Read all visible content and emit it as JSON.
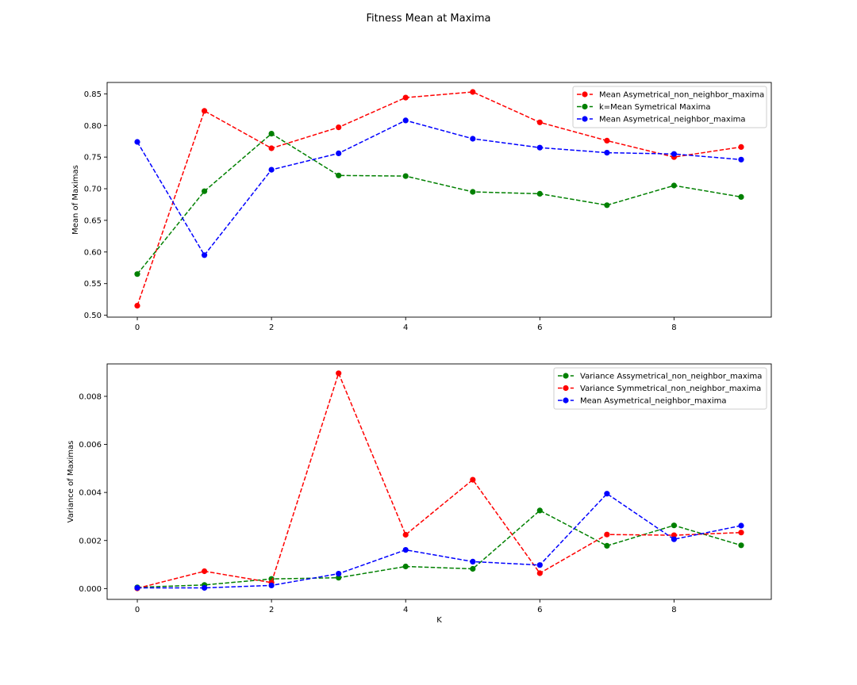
{
  "figure": {
    "title": "Fitness Mean at Maxima"
  },
  "chart_data": [
    {
      "type": "line",
      "title": "",
      "xlabel": "",
      "ylabel": "Mean of Maximas",
      "x": [
        0,
        1,
        2,
        3,
        4,
        5,
        6,
        7,
        8,
        9
      ],
      "xlim": [
        -0.45,
        9.45
      ],
      "ylim": [
        0.497,
        0.868
      ],
      "xticks": [
        0,
        2,
        4,
        6,
        8
      ],
      "xtick_labels": [
        "0",
        "2",
        "4",
        "6",
        "8"
      ],
      "yticks": [
        0.5,
        0.55,
        0.6,
        0.65,
        0.7,
        0.75,
        0.8,
        0.85
      ],
      "ytick_labels": [
        "0.50",
        "0.55",
        "0.60",
        "0.65",
        "0.70",
        "0.75",
        "0.80",
        "0.85"
      ],
      "grid": false,
      "legend_position": "top-right",
      "series": [
        {
          "name": "Mean Asymetrical_non_neighbor_maxima",
          "color": "#ff0000",
          "values": [
            0.515,
            0.823,
            0.764,
            0.797,
            0.844,
            0.853,
            0.805,
            0.776,
            0.75,
            0.766
          ]
        },
        {
          "name": "k=Mean Symetrical Maxima",
          "color": "#008000",
          "values": [
            0.565,
            0.696,
            0.787,
            0.721,
            0.72,
            0.695,
            0.692,
            0.674,
            0.705,
            0.687
          ]
        },
        {
          "name": "Mean Asymetrical_neighbor_maxima",
          "color": "#0000ff",
          "values": [
            0.774,
            0.595,
            0.73,
            0.756,
            0.808,
            0.779,
            0.765,
            0.757,
            0.755,
            0.746
          ]
        }
      ]
    },
    {
      "type": "line",
      "title": "",
      "xlabel": "K",
      "ylabel": "Variance of Maximas",
      "x": [
        0,
        1,
        2,
        3,
        4,
        5,
        6,
        7,
        8,
        9
      ],
      "xlim": [
        -0.45,
        9.45
      ],
      "ylim": [
        -0.00045,
        0.00935
      ],
      "xticks": [
        0,
        2,
        4,
        6,
        8
      ],
      "xtick_labels": [
        "0",
        "2",
        "4",
        "6",
        "8"
      ],
      "yticks": [
        0.0,
        0.002,
        0.004,
        0.006,
        0.008
      ],
      "ytick_labels": [
        "0.000",
        "0.002",
        "0.004",
        "0.006",
        "0.008"
      ],
      "grid": false,
      "legend_position": "top-right",
      "series": [
        {
          "name": "Variance Assymetrical_non_neighbor_maxima",
          "color": "#008000",
          "values": [
            5e-05,
            0.00015,
            0.0004,
            0.00045,
            0.00092,
            0.00082,
            0.00325,
            0.00178,
            0.00263,
            0.0018
          ]
        },
        {
          "name": "Variance Symmetrical_non_neighbor_maxima",
          "color": "#ff0000",
          "values": [
            1e-05,
            0.00072,
            0.00025,
            0.00896,
            0.00224,
            0.00453,
            0.00064,
            0.00225,
            0.00222,
            0.00233
          ]
        },
        {
          "name": "Mean Asymetrical_neighbor_maxima",
          "color": "#0000ff",
          "values": [
            3e-05,
            3e-05,
            0.00013,
            0.00062,
            0.00161,
            0.00112,
            0.00098,
            0.00395,
            0.00205,
            0.00262
          ]
        }
      ]
    }
  ]
}
